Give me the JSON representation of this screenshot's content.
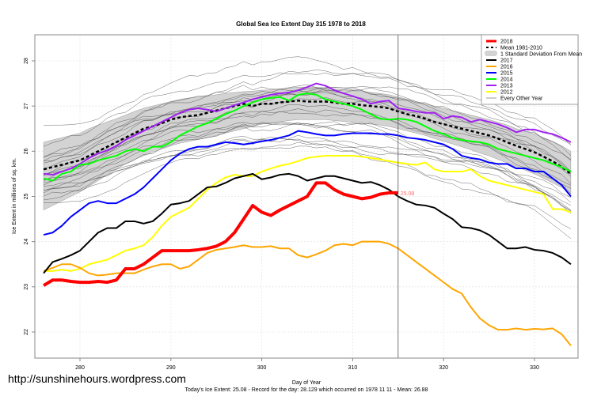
{
  "chart_data": {
    "type": "line",
    "title": "Global Sea Ice Extent Day 315 1978 to 2018",
    "xlabel": "Day of Year",
    "ylabel": "Ice Extent in millions of sq. km.",
    "subtitle": "Today's Ice Extent: 25.08  - Record for the day: 28.129 which occurred on 1978 11 11  - Mean: 26.88",
    "xlim": [
      275,
      335
    ],
    "ylim": [
      21.4,
      28.6
    ],
    "xticks": [
      280,
      290,
      300,
      310,
      320,
      330
    ],
    "yticks": [
      22,
      23,
      24,
      25,
      26,
      27,
      28
    ],
    "grid": true,
    "current_day": 315,
    "current_value_label": "25.08",
    "legend_position": "top-right",
    "legend": [
      {
        "label": "2018",
        "color": "#ff0000",
        "style": "thick"
      },
      {
        "label": "Mean 1981-2010",
        "color": "#000000",
        "style": "dashed"
      },
      {
        "label": "1 Standard Deviation From Mean",
        "color": "#d3d3d3",
        "style": "band"
      },
      {
        "label": "2017",
        "color": "#000000",
        "style": "solid"
      },
      {
        "label": "2016",
        "color": "#ffa500",
        "style": "solid"
      },
      {
        "label": "2015",
        "color": "#0000ff",
        "style": "solid"
      },
      {
        "label": "2014",
        "color": "#00ff00",
        "style": "solid"
      },
      {
        "label": "2013",
        "color": "#a020f0",
        "style": "solid"
      },
      {
        "label": "2012",
        "color": "#ffff00",
        "style": "solid"
      },
      {
        "label": "Every Other Year",
        "color": "#909090",
        "style": "thin"
      }
    ],
    "x": [
      276,
      277,
      278,
      279,
      280,
      281,
      282,
      283,
      284,
      285,
      286,
      287,
      288,
      289,
      290,
      291,
      292,
      293,
      294,
      295,
      296,
      297,
      298,
      299,
      300,
      301,
      302,
      303,
      304,
      305,
      306,
      307,
      308,
      309,
      310,
      311,
      312,
      313,
      314,
      315,
      316,
      317,
      318,
      319,
      320,
      321,
      322,
      323,
      324,
      325,
      326,
      327,
      328,
      329,
      330,
      331,
      332,
      333,
      334
    ],
    "mean": [
      25.6,
      25.65,
      25.7,
      25.75,
      25.8,
      25.9,
      26.0,
      26.1,
      26.2,
      26.3,
      26.4,
      26.5,
      26.55,
      26.62,
      26.7,
      26.75,
      26.78,
      26.8,
      26.85,
      26.9,
      26.95,
      27.0,
      27.05,
      27.0,
      27.05,
      27.05,
      27.08,
      27.1,
      27.12,
      27.1,
      27.1,
      27.1,
      27.08,
      27.05,
      27.05,
      27.02,
      27.0,
      26.98,
      26.95,
      26.88,
      26.82,
      26.78,
      26.72,
      26.65,
      26.6,
      26.55,
      26.5,
      26.45,
      26.4,
      26.35,
      26.28,
      26.2,
      26.12,
      26.05,
      25.98,
      25.88,
      25.78,
      25.65,
      25.5
    ],
    "std_upper": [
      26.2,
      26.25,
      26.3,
      26.35,
      26.4,
      26.5,
      26.58,
      26.65,
      26.72,
      26.8,
      26.88,
      26.95,
      27.0,
      27.05,
      27.1,
      27.15,
      27.18,
      27.2,
      27.22,
      27.25,
      27.28,
      27.3,
      27.32,
      27.33,
      27.35,
      27.36,
      27.38,
      27.4,
      27.42,
      27.42,
      27.42,
      27.4,
      27.38,
      27.36,
      27.34,
      27.32,
      27.3,
      27.28,
      27.25,
      27.2,
      27.15,
      27.1,
      27.05,
      27.0,
      26.95,
      26.9,
      26.85,
      26.8,
      26.75,
      26.7,
      26.64,
      26.58,
      26.5,
      26.44,
      26.38,
      26.3,
      26.22,
      26.12,
      26.0
    ],
    "std_lower": [
      24.7,
      24.8,
      24.9,
      25.0,
      25.1,
      25.22,
      25.35,
      25.48,
      25.6,
      25.72,
      25.82,
      25.9,
      25.98,
      26.05,
      26.12,
      26.18,
      26.22,
      26.26,
      26.3,
      26.35,
      26.4,
      26.45,
      26.5,
      26.55,
      26.6,
      26.62,
      26.65,
      26.68,
      26.7,
      26.7,
      26.7,
      26.7,
      26.68,
      26.66,
      26.64,
      26.62,
      26.6,
      26.58,
      26.55,
      26.5,
      26.45,
      26.4,
      26.35,
      26.28,
      26.22,
      26.16,
      26.1,
      26.03,
      25.96,
      25.9,
      25.82,
      25.74,
      25.66,
      25.58,
      25.5,
      25.4,
      25.3,
      25.2,
      25.05
    ],
    "series": [
      {
        "name": "2018",
        "color": "#ff0000",
        "values": [
          23.03,
          23.15,
          23.15,
          23.12,
          23.1,
          23.1,
          23.12,
          23.1,
          23.15,
          23.4,
          23.4,
          23.5,
          23.65,
          23.8,
          23.8,
          23.8,
          23.8,
          23.82,
          23.85,
          23.9,
          24.0,
          24.2,
          24.5,
          24.8,
          24.65,
          24.58,
          24.7,
          24.8,
          24.9,
          25.0,
          25.3,
          25.3,
          25.15,
          25.05,
          25.0,
          24.95,
          24.98,
          25.05,
          25.08,
          25.08
        ]
      },
      {
        "name": "2017",
        "color": "#000000",
        "values": [
          23.3,
          23.55,
          23.62,
          23.7,
          23.8,
          24.0,
          24.2,
          24.3,
          24.3,
          24.45,
          24.45,
          24.4,
          24.45,
          24.62,
          24.82,
          24.85,
          24.9,
          25.05,
          25.2,
          25.22,
          25.3,
          25.4,
          25.45,
          25.5,
          25.38,
          25.42,
          25.48,
          25.5,
          25.45,
          25.35,
          25.4,
          25.45,
          25.45,
          25.4,
          25.35,
          25.3,
          25.32,
          25.25,
          25.15,
          25.0,
          24.9,
          24.82,
          24.8,
          24.75,
          24.62,
          24.5,
          24.32,
          24.3,
          24.25,
          24.15,
          24.0,
          23.85,
          23.85,
          23.88,
          23.82,
          23.8,
          23.75,
          23.65,
          23.5
        ]
      },
      {
        "name": "2016",
        "color": "#ffa500",
        "values": [
          23.35,
          23.42,
          23.5,
          23.5,
          23.42,
          23.3,
          23.25,
          23.27,
          23.3,
          23.3,
          23.3,
          23.38,
          23.45,
          23.5,
          23.5,
          23.4,
          23.45,
          23.6,
          23.75,
          23.82,
          23.85,
          23.88,
          23.92,
          23.88,
          23.88,
          23.9,
          23.85,
          23.85,
          23.7,
          23.65,
          23.72,
          23.8,
          23.92,
          23.95,
          23.92,
          24.0,
          24.0,
          24.0,
          23.95,
          23.85,
          23.7,
          23.55,
          23.4,
          23.25,
          23.1,
          22.95,
          22.85,
          22.55,
          22.3,
          22.15,
          22.05,
          22.05,
          22.08,
          22.05,
          22.07,
          22.06,
          22.08,
          21.95,
          21.7
        ]
      },
      {
        "name": "2015",
        "color": "#0000ff",
        "values": [
          24.15,
          24.2,
          24.35,
          24.55,
          24.7,
          24.85,
          24.9,
          24.85,
          24.85,
          24.95,
          25.05,
          25.2,
          25.4,
          25.6,
          25.8,
          25.95,
          26.05,
          26.1,
          26.1,
          26.15,
          26.2,
          26.18,
          26.15,
          26.18,
          26.22,
          26.25,
          26.3,
          26.35,
          26.45,
          26.42,
          26.38,
          26.35,
          26.35,
          26.38,
          26.4,
          26.4,
          26.4,
          26.38,
          26.38,
          26.35,
          26.3,
          26.28,
          26.25,
          26.2,
          26.15,
          26.05,
          25.9,
          25.85,
          25.82,
          25.75,
          25.72,
          25.72,
          25.62,
          25.62,
          25.55,
          25.55,
          25.4,
          25.25,
          25.0
        ]
      },
      {
        "name": "2014",
        "color": "#00ff00",
        "values": [
          25.4,
          25.35,
          25.5,
          25.55,
          25.7,
          25.72,
          25.8,
          25.85,
          25.9,
          26.0,
          26.05,
          26.0,
          26.1,
          26.1,
          26.2,
          26.35,
          26.45,
          26.55,
          26.62,
          26.72,
          26.82,
          26.9,
          27.0,
          27.08,
          27.15,
          27.18,
          27.2,
          27.12,
          27.25,
          27.28,
          27.25,
          27.15,
          27.1,
          27.05,
          27.0,
          26.92,
          26.82,
          26.72,
          26.7,
          26.72,
          26.7,
          26.65,
          26.55,
          26.45,
          26.38,
          26.3,
          26.25,
          26.22,
          26.2,
          26.15,
          26.05,
          26.0,
          25.95,
          25.9,
          25.85,
          25.8,
          25.72,
          25.65,
          25.55
        ]
      },
      {
        "name": "2013",
        "color": "#a020f0",
        "values": [
          25.5,
          25.48,
          25.55,
          25.62,
          25.72,
          25.85,
          25.95,
          26.02,
          26.12,
          26.25,
          26.35,
          26.45,
          26.55,
          26.65,
          26.75,
          26.85,
          26.92,
          26.95,
          26.92,
          26.88,
          26.95,
          27.02,
          27.08,
          27.15,
          27.2,
          27.25,
          27.28,
          27.3,
          27.35,
          27.42,
          27.5,
          27.45,
          27.35,
          27.28,
          27.22,
          27.15,
          27.05,
          27.1,
          27.12,
          26.95,
          26.92,
          26.88,
          26.85,
          26.85,
          26.72,
          26.78,
          26.75,
          26.65,
          26.7,
          26.65,
          26.6,
          26.52,
          26.42,
          26.48,
          26.48,
          26.42,
          26.38,
          26.3,
          26.2
        ]
      },
      {
        "name": "2012",
        "color": "#ffff00",
        "values": [
          23.35,
          23.35,
          23.38,
          23.35,
          23.4,
          23.5,
          23.55,
          23.6,
          23.7,
          23.8,
          23.85,
          23.92,
          24.1,
          24.35,
          24.55,
          24.65,
          24.75,
          24.95,
          25.15,
          25.3,
          25.42,
          25.48,
          25.45,
          25.45,
          25.55,
          25.62,
          25.68,
          25.72,
          25.78,
          25.85,
          25.88,
          25.9,
          25.9,
          25.9,
          25.9,
          25.88,
          25.85,
          25.82,
          25.78,
          25.75,
          25.72,
          25.7,
          25.75,
          25.6,
          25.55,
          25.55,
          25.55,
          25.6,
          25.45,
          25.35,
          25.3,
          25.25,
          25.2,
          25.15,
          25.1,
          25.05,
          24.72,
          24.72,
          24.65
        ]
      }
    ],
    "other_years_note": "Thin grey lines for every other year 1978-2011"
  },
  "watermark": "http://sunshinehours.wordpress.com"
}
